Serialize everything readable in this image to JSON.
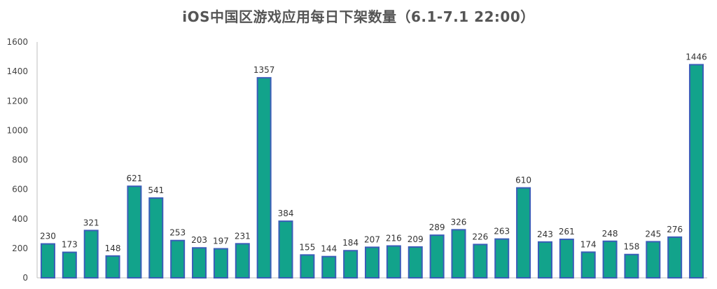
{
  "chart_data": {
    "type": "bar",
    "title": "iOS中国区游戏应用每日下架数量（6.1-7.1 22:00）",
    "xlabel": "",
    "ylabel": "",
    "ylim": [
      0,
      1600
    ],
    "yticks": [
      0,
      200,
      400,
      600,
      800,
      1000,
      1200,
      1400,
      1600
    ],
    "grid": false,
    "legend": "none",
    "colors": {
      "bar_fill": "#12a38b",
      "bar_stroke": "#3a5db8"
    },
    "values": [
      230,
      173,
      321,
      148,
      621,
      541,
      253,
      203,
      197,
      231,
      1357,
      384,
      155,
      144,
      184,
      207,
      216,
      209,
      289,
      326,
      226,
      263,
      610,
      243,
      261,
      174,
      248,
      158,
      245,
      276,
      1446
    ]
  }
}
